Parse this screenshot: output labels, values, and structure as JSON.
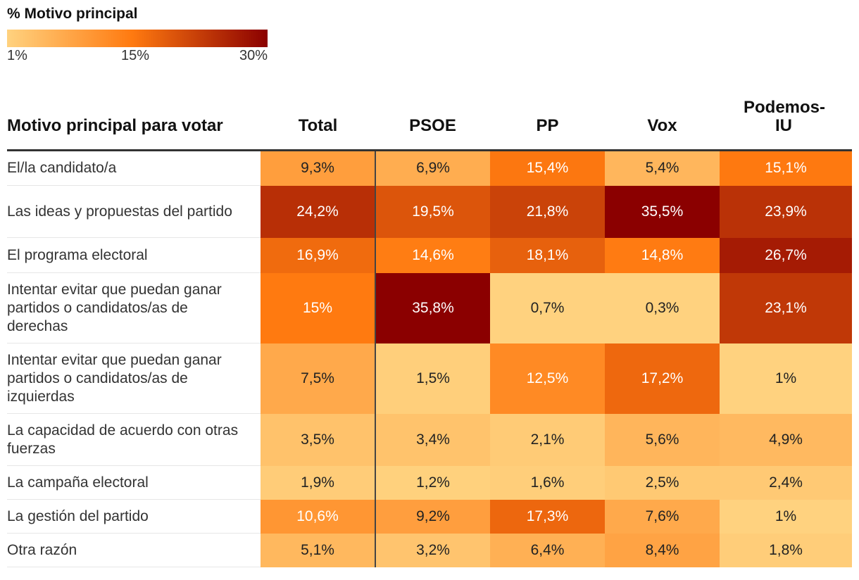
{
  "legend": {
    "title": "% Motivo principal",
    "ticks": [
      "1%",
      "15%",
      "30%"
    ],
    "colors": [
      "#ffd27f",
      "#ff7a10",
      "#8b0000"
    ]
  },
  "chart_data": {
    "type": "heatmap",
    "row_header": "Motivo principal para votar",
    "columns": [
      "Total",
      "PSOE",
      "PP",
      "Vox",
      "Podemos-IU"
    ],
    "color_scale": {
      "domain": [
        1,
        15,
        30
      ],
      "range": [
        "#ffd27f",
        "#ff7a10",
        "#8b0000"
      ]
    },
    "rows": [
      {
        "label": "El/la candidato/a",
        "values": [
          "9,3%",
          "6,9%",
          "15,4%",
          "5,4%",
          "15,1%"
        ]
      },
      {
        "label": "Las ideas y propuestas del partido",
        "values": [
          "24,2%",
          "19,5%",
          "21,8%",
          "35,5%",
          "23,9%"
        ]
      },
      {
        "label": "El programa electoral",
        "values": [
          "16,9%",
          "14,6%",
          "18,1%",
          "14,8%",
          "26,7%"
        ]
      },
      {
        "label": "Intentar evitar que puedan ganar partidos o candidatos/as de derechas",
        "values": [
          "15%",
          "35,8%",
          "0,7%",
          "0,3%",
          "23,1%"
        ]
      },
      {
        "label": "Intentar evitar que puedan ganar partidos o candidatos/as de izquierdas",
        "values": [
          "7,5%",
          "1,5%",
          "12,5%",
          "17,2%",
          "1%"
        ]
      },
      {
        "label": "La capacidad de acuerdo con otras fuerzas",
        "values": [
          "3,5%",
          "3,4%",
          "2,1%",
          "5,6%",
          "4,9%"
        ]
      },
      {
        "label": "La campaña electoral",
        "values": [
          "1,9%",
          "1,2%",
          "1,6%",
          "2,5%",
          "2,4%"
        ]
      },
      {
        "label": "La gestión del partido",
        "values": [
          "10,6%",
          "9,2%",
          "17,3%",
          "7,6%",
          "1%"
        ]
      },
      {
        "label": "Otra razón",
        "values": [
          "5,1%",
          "3,2%",
          "6,4%",
          "8,4%",
          "1,8%"
        ]
      }
    ]
  }
}
